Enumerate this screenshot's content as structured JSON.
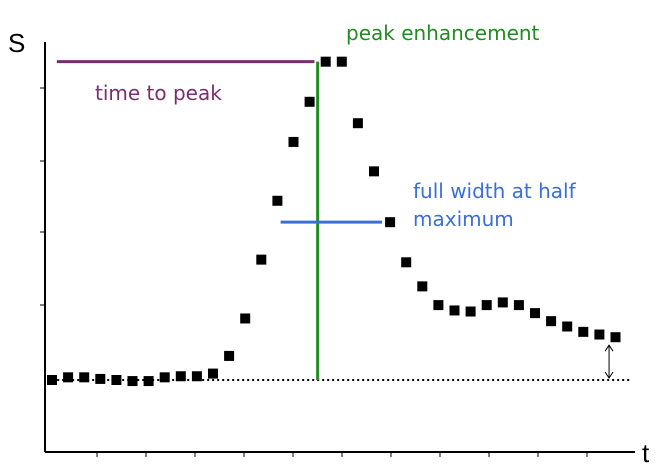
{
  "chart_data": {
    "type": "scatter",
    "xlabel": "t",
    "ylabel": "S",
    "xlim": [
      0,
      36.5
    ],
    "ylim": [
      -1.2,
      7.2
    ],
    "grid": false,
    "series": [
      {
        "x": [
          0,
          1,
          2,
          3,
          4,
          5,
          6,
          7,
          8,
          9,
          10,
          11,
          12,
          13,
          14,
          15,
          16,
          17,
          18,
          19,
          20,
          21,
          22,
          23,
          24,
          25,
          26,
          27,
          28,
          29,
          30,
          31,
          32,
          33,
          34,
          35
        ],
        "values": [
          0.0,
          0.05,
          0.05,
          0.02,
          0.0,
          -0.02,
          -0.02,
          0.05,
          0.07,
          0.07,
          0.12,
          0.45,
          1.15,
          2.25,
          3.35,
          4.45,
          5.2,
          5.95,
          5.95,
          4.8,
          3.9,
          2.95,
          2.2,
          1.75,
          1.4,
          1.3,
          1.28,
          1.4,
          1.45,
          1.4,
          1.25,
          1.1,
          1.0,
          0.9,
          0.85,
          0.8
        ]
      }
    ],
    "baseline": 0,
    "annotations": {
      "peak_enhancement": {
        "text": "peak enhancement",
        "x": 16.5,
        "y_from": 0,
        "y_to": 5.95,
        "color": "#228B22"
      },
      "time_to_peak": {
        "text": "time to peak",
        "x_from": 0.3,
        "x_to": 16.3,
        "y": 5.95,
        "color": "#7B2D6E"
      },
      "fwhm_lines": [
        "full width at half",
        "maximum"
      ],
      "fwhm": {
        "x_from": 14.2,
        "x_to": 20.5,
        "y": 2.95,
        "color": "#3A6FD8"
      },
      "end_offset": {
        "x": 34.6,
        "y_from": 0,
        "y_to": 0.8
      }
    }
  }
}
